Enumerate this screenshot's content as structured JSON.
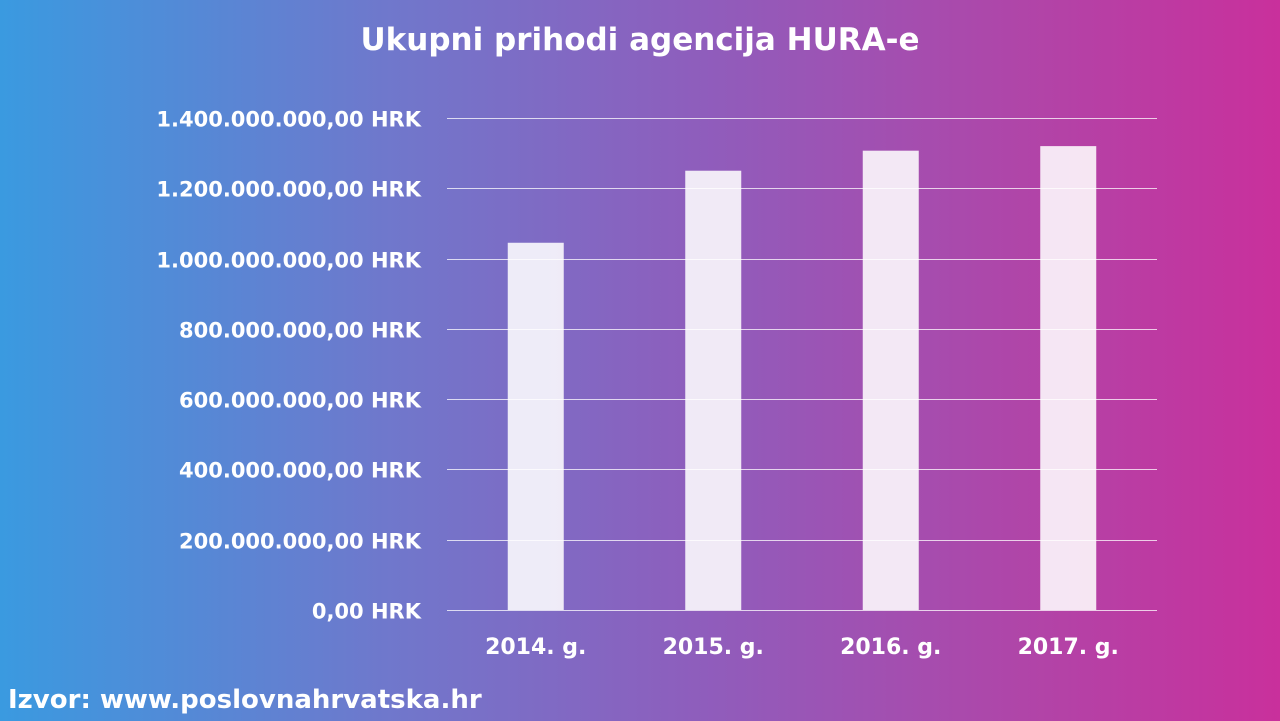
{
  "chart_data": {
    "type": "bar",
    "title": "Ukupni prihodi agencija HURA-e",
    "categories": [
      "2014. g.",
      "2015. g.",
      "2016. g.",
      "2017. g."
    ],
    "values": [
      1045000000,
      1250000000,
      1307000000,
      1320000000
    ],
    "ylim": [
      0,
      1400000000
    ],
    "yticks": [
      0,
      200000000,
      400000000,
      600000000,
      800000000,
      1000000000,
      1200000000,
      1400000000
    ],
    "ytick_labels": [
      "0,00 HRK",
      "200.000.000,00 HRK",
      "400.000.000,00 HRK",
      "600.000.000,00 HRK",
      "800.000.000,00 HRK",
      "1.000.000.000,00 HRK",
      "1.200.000.000,00 HRK",
      "1.400.000.000,00 HRK"
    ],
    "grid": true,
    "bar_color": "#ffffff"
  },
  "source": "Izvor: www.poslovnahrvatska.hr"
}
